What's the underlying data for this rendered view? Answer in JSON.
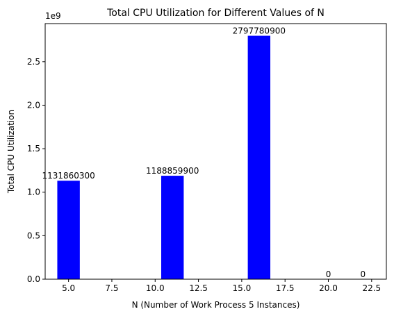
{
  "chart_data": {
    "type": "bar",
    "title": "Total CPU Utilization for Different Values of N",
    "xlabel": "N (Number of Work Process 5 Instances)",
    "ylabel": "Total CPU Utilization",
    "y_offset_label": "1e9",
    "x": [
      5,
      11,
      16,
      20,
      22
    ],
    "values": [
      1131860300,
      1188859900,
      2797780900,
      0,
      0
    ],
    "data_labels": [
      "1131860300",
      "1188859900",
      "2797780900",
      "0",
      "0"
    ],
    "bar_color": "#0000ff",
    "xlim": [
      3.65,
      23.35
    ],
    "ylim": [
      0,
      2937669945
    ],
    "x_ticks": [
      5.0,
      7.5,
      10.0,
      12.5,
      15.0,
      17.5,
      20.0,
      22.5
    ],
    "x_tick_labels": [
      "5.0",
      "7.5",
      "10.0",
      "12.5",
      "15.0",
      "17.5",
      "20.0",
      "22.5"
    ],
    "y_ticks": [
      0,
      500000000,
      1000000000,
      1500000000,
      2000000000,
      2500000000
    ],
    "y_tick_labels": [
      "0.0",
      "0.5",
      "1.0",
      "1.5",
      "2.0",
      "2.5"
    ],
    "grid": false
  }
}
